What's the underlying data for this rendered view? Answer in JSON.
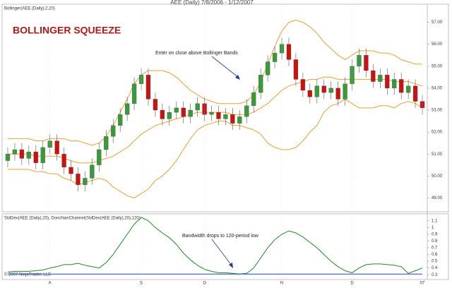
{
  "chart_data": [
    {
      "type": "candlestick",
      "title": "AEE (Daily)  7/8/2006 - 1/12/2007",
      "label": "Bollinger(AEE (Daily),2,20)",
      "annotations": [
        {
          "text": "BOLLINGER SQUEEZE"
        },
        {
          "text": "Enter on close above Bollinger Bands"
        }
      ],
      "categories": [
        null,
        null,
        null,
        null,
        null,
        null,
        "A",
        null,
        null,
        null,
        null,
        null,
        null,
        null,
        null,
        null,
        null,
        null,
        null,
        "S",
        null,
        null,
        null,
        null,
        null,
        null,
        null,
        null,
        "O",
        null,
        null,
        null,
        null,
        null,
        null,
        null,
        null,
        null,
        null,
        "N",
        null,
        null,
        null,
        null,
        null,
        null,
        null,
        null,
        null,
        "D",
        null,
        null,
        null,
        null,
        null,
        null,
        null,
        null,
        null,
        "07"
      ],
      "open": [
        50.7,
        51.0,
        51.2,
        50.8,
        51.1,
        50.6,
        51.3,
        51.6,
        51.0,
        50.4,
        50.1,
        49.6,
        49.9,
        50.5,
        51.2,
        51.8,
        52.3,
        52.8,
        53.3,
        54.2,
        54.6,
        53.5,
        53.0,
        52.6,
        52.9,
        53.1,
        52.7,
        53.0,
        53.3,
        52.8,
        52.9,
        52.6,
        52.8,
        52.4,
        52.7,
        53.2,
        53.8,
        54.6,
        55.2,
        55.6,
        56.0,
        55.3,
        54.4,
        53.9,
        53.6,
        54.1,
        53.8,
        54.0,
        53.5,
        54.2,
        55.0,
        55.5,
        54.8,
        54.3,
        54.6,
        54.0,
        54.4,
        53.8,
        54.1,
        53.4
      ],
      "high": [
        51.3,
        51.5,
        51.5,
        51.4,
        51.4,
        51.6,
        51.9,
        51.9,
        51.3,
        50.7,
        50.4,
        50.2,
        50.8,
        51.5,
        52.1,
        52.6,
        53.1,
        53.6,
        54.5,
        54.9,
        54.9,
        53.8,
        53.3,
        53.2,
        53.4,
        53.4,
        53.3,
        53.6,
        53.6,
        53.2,
        53.2,
        53.1,
        53.1,
        53.0,
        53.5,
        54.1,
        54.9,
        55.5,
        55.9,
        56.3,
        56.3,
        55.6,
        54.7,
        54.2,
        54.4,
        54.4,
        54.3,
        54.3,
        54.5,
        55.3,
        55.8,
        55.8,
        55.1,
        54.9,
        54.9,
        54.7,
        54.7,
        54.4,
        54.4,
        53.7
      ],
      "low": [
        50.4,
        50.7,
        50.5,
        50.5,
        50.3,
        50.3,
        51.0,
        50.7,
        50.1,
        49.8,
        49.3,
        49.3,
        49.6,
        50.2,
        50.9,
        51.5,
        52.0,
        52.5,
        53.0,
        53.9,
        53.2,
        52.7,
        52.3,
        52.3,
        52.6,
        52.4,
        52.4,
        52.7,
        52.5,
        52.5,
        52.3,
        52.3,
        52.1,
        52.1,
        52.4,
        52.9,
        53.5,
        54.3,
        54.9,
        55.3,
        55.0,
        54.1,
        53.6,
        53.3,
        53.3,
        53.5,
        53.5,
        53.2,
        53.2,
        53.9,
        54.7,
        54.5,
        54.0,
        54.0,
        53.7,
        53.7,
        53.5,
        53.5,
        53.1,
        52.8
      ],
      "close": [
        51.0,
        51.2,
        50.8,
        51.1,
        50.6,
        51.3,
        51.6,
        51.0,
        50.4,
        50.1,
        49.6,
        49.9,
        50.5,
        51.2,
        51.8,
        52.3,
        52.8,
        53.3,
        54.2,
        54.6,
        53.5,
        53.0,
        52.6,
        52.9,
        53.1,
        52.7,
        53.0,
        53.3,
        52.8,
        52.9,
        52.6,
        52.8,
        52.4,
        52.7,
        53.2,
        53.8,
        54.6,
        55.2,
        55.6,
        56.0,
        55.3,
        54.4,
        53.9,
        53.6,
        54.1,
        53.8,
        54.0,
        53.5,
        54.2,
        55.0,
        55.5,
        54.8,
        54.3,
        54.6,
        54.0,
        54.4,
        53.8,
        54.1,
        53.4,
        53.1
      ],
      "up_color": "#3a9a3a",
      "down_color": "#cc1111",
      "series": [
        {
          "color": "#e8a030",
          "values": [
            51.7,
            51.7,
            51.7,
            51.7,
            51.6,
            51.6,
            51.7,
            51.7,
            51.7,
            51.6,
            51.6,
            51.5,
            51.4,
            51.5,
            51.8,
            52.3,
            52.9,
            53.5,
            54.2,
            54.6,
            54.8,
            54.8,
            54.8,
            54.7,
            54.5,
            54.2,
            53.9,
            53.7,
            53.5,
            53.4,
            53.3,
            53.3,
            53.3,
            53.3,
            53.4,
            53.7,
            54.3,
            55.1,
            55.9,
            56.6,
            57.0,
            57.1,
            57.0,
            56.8,
            56.5,
            56.1,
            55.8,
            55.5,
            55.3,
            55.5,
            55.7,
            55.7,
            55.7,
            55.6,
            55.6,
            55.5,
            55.3,
            55.2,
            55.1,
            55.1
          ]
        },
        {
          "color": "#e8a030",
          "values": [
            51.0,
            51.0,
            51.0,
            51.0,
            50.9,
            50.9,
            50.9,
            50.9,
            50.8,
            50.7,
            50.6,
            50.6,
            50.6,
            50.7,
            50.8,
            50.9,
            51.1,
            51.3,
            51.6,
            51.9,
            52.1,
            52.3,
            52.4,
            52.5,
            52.6,
            52.7,
            52.8,
            52.9,
            52.9,
            52.9,
            52.9,
            52.9,
            52.8,
            52.8,
            52.8,
            52.9,
            53.1,
            53.3,
            53.6,
            53.9,
            54.1,
            54.2,
            54.3,
            54.4,
            54.4,
            54.5,
            54.5,
            54.4,
            54.4,
            54.4,
            54.4,
            54.4,
            54.4,
            54.4,
            54.4,
            54.3,
            54.3,
            54.3,
            54.2,
            54.1
          ]
        },
        {
          "color": "#e8a030",
          "values": [
            50.3,
            50.3,
            50.3,
            50.3,
            50.2,
            50.2,
            50.1,
            50.1,
            49.9,
            49.8,
            49.6,
            49.7,
            49.8,
            49.9,
            49.8,
            49.5,
            49.3,
            49.1,
            49.0,
            49.2,
            49.4,
            49.8,
            50.0,
            50.3,
            50.7,
            51.2,
            51.7,
            52.1,
            52.3,
            52.4,
            52.5,
            52.5,
            52.3,
            52.3,
            52.2,
            52.1,
            51.9,
            51.5,
            51.3,
            51.2,
            51.2,
            51.3,
            51.6,
            52.0,
            52.3,
            52.9,
            53.2,
            53.3,
            53.5,
            53.3,
            53.1,
            53.1,
            53.1,
            53.2,
            53.2,
            53.1,
            53.3,
            53.4,
            53.3,
            53.1
          ]
        }
      ],
      "ylim": [
        48.5,
        57.5
      ],
      "yticks": [
        {
          "value": 49,
          "label": "49.00"
        },
        {
          "value": 50,
          "label": "50.00"
        },
        {
          "value": 51,
          "label": "51.00"
        },
        {
          "value": 52,
          "label": "52.00"
        },
        {
          "value": 53,
          "label": "53.00"
        },
        {
          "value": 54,
          "label": "54.00"
        },
        {
          "value": 55,
          "label": "55.00"
        },
        {
          "value": 56,
          "label": "56.00"
        },
        {
          "value": 57,
          "label": "57.00"
        }
      ],
      "grid": false
    },
    {
      "type": "line",
      "label": "StdDev(AEE (Daily),20), DonchianChannel(StdDev(AEE (Daily),20),120)",
      "annotations": [
        {
          "text": "Bandwidth drops to 120-period low"
        }
      ],
      "copyright": "© 2007 NinjaTrader, LLC",
      "series": [
        {
          "color": "#1f8a1f",
          "values": [
            0.34,
            0.35,
            0.35,
            0.35,
            0.36,
            0.37,
            0.4,
            0.42,
            0.45,
            0.45,
            0.47,
            0.44,
            0.42,
            0.4,
            0.48,
            0.6,
            0.75,
            0.9,
            1.05,
            1.15,
            1.1,
            1.0,
            0.92,
            0.85,
            0.75,
            0.62,
            0.52,
            0.44,
            0.38,
            0.35,
            0.33,
            0.33,
            0.32,
            0.31,
            0.32,
            0.4,
            0.55,
            0.7,
            0.82,
            0.9,
            0.95,
            0.92,
            0.86,
            0.78,
            0.7,
            0.6,
            0.5,
            0.42,
            0.36,
            0.33,
            0.4,
            0.45,
            0.46,
            0.46,
            0.45,
            0.44,
            0.42,
            0.32,
            0.36,
            0.4
          ]
        },
        {
          "color": "#2040d0",
          "values": [
            0.31,
            0.31,
            0.31,
            0.31,
            0.31,
            0.31,
            0.31,
            0.31,
            0.31,
            0.31,
            0.31,
            0.31,
            0.31,
            0.31,
            0.31,
            0.31,
            0.31,
            0.31,
            0.31,
            0.31,
            0.31,
            0.31,
            0.31,
            0.31,
            0.31,
            0.31,
            0.31,
            0.31,
            0.31,
            0.31,
            0.31,
            0.31,
            0.31,
            0.31,
            0.31,
            0.31,
            0.31,
            0.31,
            0.31,
            0.31,
            0.31,
            0.31,
            0.31,
            0.31,
            0.31,
            0.31,
            0.31,
            0.31,
            0.31,
            0.31,
            0.31,
            0.31,
            0.31,
            0.31,
            0.31,
            0.31,
            0.31,
            0.31,
            0.31,
            0.31
          ]
        }
      ],
      "ylim": [
        0.25,
        1.15
      ],
      "yticks": [
        0.3,
        0.4,
        0.5,
        0.6,
        0.7,
        0.8,
        0.9,
        1,
        1.1
      ],
      "grid": false
    }
  ]
}
